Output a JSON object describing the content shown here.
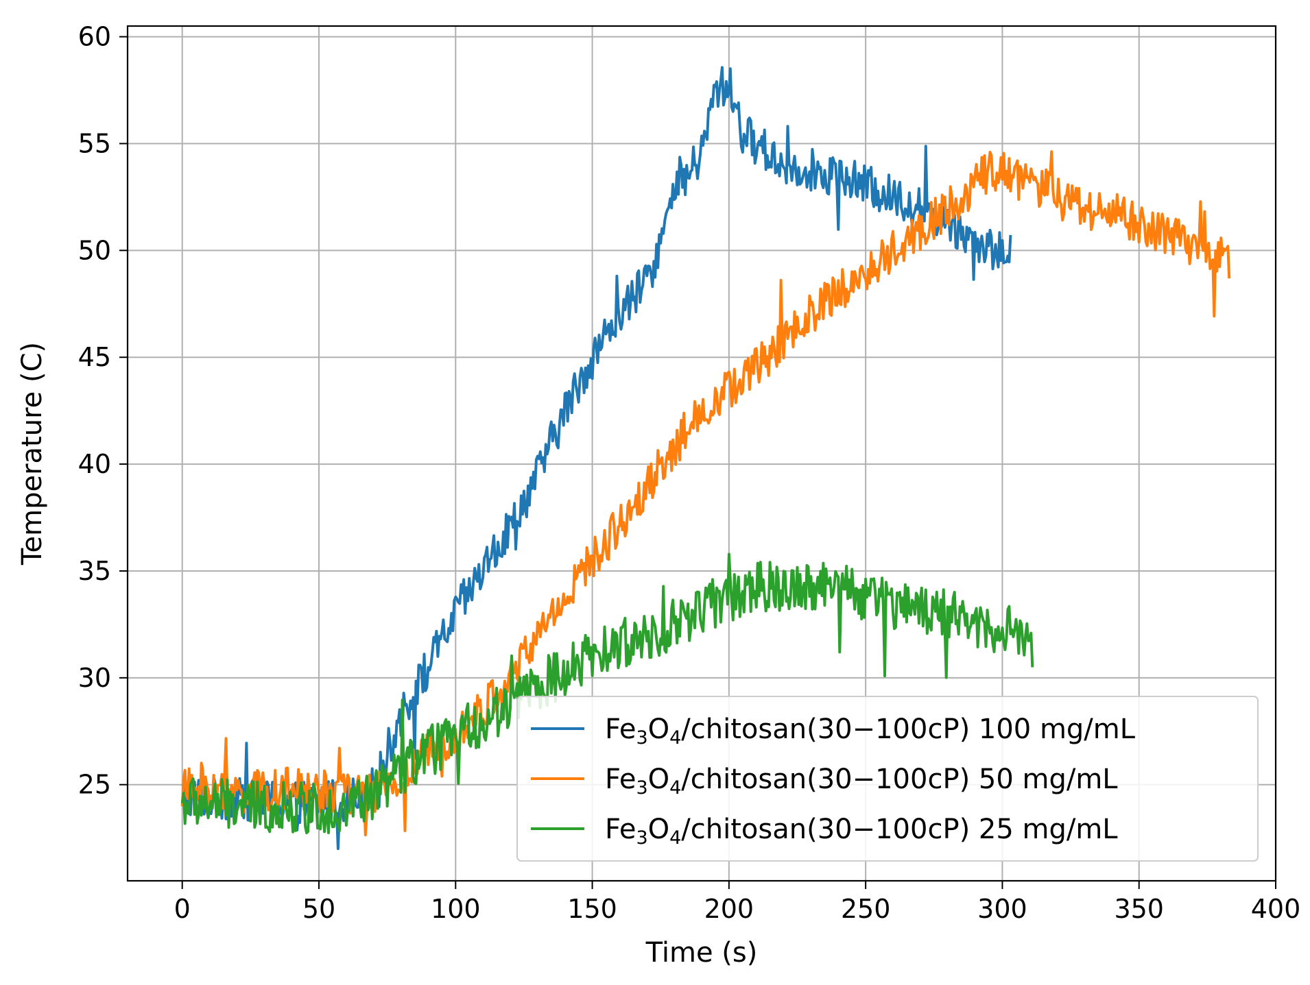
{
  "chart_data": {
    "type": "line",
    "xlabel": "Time (s)",
    "ylabel": "Temperature (C)",
    "xlim": [
      -20,
      400
    ],
    "ylim": [
      20.5,
      60.5
    ],
    "xticks": [
      0,
      50,
      100,
      150,
      200,
      250,
      300,
      350,
      400
    ],
    "yticks": [
      25,
      30,
      35,
      40,
      45,
      50,
      55,
      60
    ],
    "grid": true,
    "legend_position": "lower-right",
    "series": [
      {
        "name": "Fe3O4/chitosan(30−100cP) 100 mg/mL",
        "legend": {
          "a": "Fe",
          "s1": "3",
          "b": "O",
          "s2": "4",
          "c": "/chitosan(30−100cP) 100 mg/mL"
        },
        "color": "#1f77b4",
        "x_end": 303,
        "noise": 1.0,
        "points": [
          [
            0,
            24.5
          ],
          [
            20,
            24.3
          ],
          [
            40,
            24.2
          ],
          [
            60,
            24.3
          ],
          [
            70,
            24.8
          ],
          [
            80,
            28.2
          ],
          [
            90,
            30.5
          ],
          [
            100,
            33
          ],
          [
            110,
            35
          ],
          [
            120,
            37
          ],
          [
            130,
            39.5
          ],
          [
            140,
            42.5
          ],
          [
            150,
            45
          ],
          [
            160,
            47
          ],
          [
            170,
            48.5
          ],
          [
            180,
            52.5
          ],
          [
            190,
            54.5
          ],
          [
            195,
            57.5
          ],
          [
            200,
            57.8
          ],
          [
            205,
            55.5
          ],
          [
            210,
            55
          ],
          [
            220,
            54
          ],
          [
            230,
            53.8
          ],
          [
            240,
            53.5
          ],
          [
            250,
            53
          ],
          [
            260,
            52.5
          ],
          [
            270,
            52
          ],
          [
            280,
            51.3
          ],
          [
            290,
            50.5
          ],
          [
            300,
            49.8
          ],
          [
            303,
            49.8
          ]
        ]
      },
      {
        "name": "Fe3O4/chitosan(30−100cP) 50 mg/mL",
        "legend": {
          "a": "Fe",
          "s1": "3",
          "b": "O",
          "s2": "4",
          "c": "/chitosan(30−100cP) 50 mg/mL"
        },
        "color": "#ff7f0e",
        "x_end": 383,
        "noise": 1.0,
        "points": [
          [
            0,
            24.8
          ],
          [
            20,
            24.6
          ],
          [
            40,
            24.8
          ],
          [
            60,
            24.6
          ],
          [
            70,
            24.5
          ],
          [
            80,
            25.2
          ],
          [
            90,
            26.5
          ],
          [
            100,
            27.5
          ],
          [
            110,
            28.5
          ],
          [
            120,
            30
          ],
          [
            130,
            32
          ],
          [
            140,
            33.8
          ],
          [
            150,
            35.5
          ],
          [
            160,
            37.2
          ],
          [
            170,
            39
          ],
          [
            180,
            40.8
          ],
          [
            190,
            42.5
          ],
          [
            200,
            43.5
          ],
          [
            210,
            44.5
          ],
          [
            220,
            45.8
          ],
          [
            230,
            47
          ],
          [
            240,
            48
          ],
          [
            250,
            49
          ],
          [
            260,
            50
          ],
          [
            270,
            51
          ],
          [
            280,
            52
          ],
          [
            290,
            53
          ],
          [
            295,
            53.8
          ],
          [
            300,
            53.6
          ],
          [
            310,
            53.2
          ],
          [
            320,
            52.5
          ],
          [
            330,
            52
          ],
          [
            340,
            51.8
          ],
          [
            350,
            51.2
          ],
          [
            360,
            50.7
          ],
          [
            370,
            50.3
          ],
          [
            383,
            49.5
          ]
        ]
      },
      {
        "name": "Fe3O4/chitosan(30−100cP) 25 mg/mL",
        "legend": {
          "a": "Fe",
          "s1": "3",
          "b": "O",
          "s2": "4",
          "c": "/chitosan(30−100cP) 25 mg/mL"
        },
        "color": "#2ca02c",
        "x_end": 311,
        "noise": 1.2,
        "points": [
          [
            0,
            24.2
          ],
          [
            20,
            24.0
          ],
          [
            40,
            23.9
          ],
          [
            60,
            23.9
          ],
          [
            70,
            24.5
          ],
          [
            80,
            25.6
          ],
          [
            90,
            26.5
          ],
          [
            100,
            27.3
          ],
          [
            110,
            28
          ],
          [
            120,
            28.8
          ],
          [
            130,
            29.6
          ],
          [
            140,
            30.3
          ],
          [
            150,
            31
          ],
          [
            160,
            31.5
          ],
          [
            170,
            32
          ],
          [
            180,
            32.5
          ],
          [
            190,
            33.2
          ],
          [
            200,
            33.8
          ],
          [
            210,
            34.2
          ],
          [
            220,
            34.3
          ],
          [
            230,
            34.4
          ],
          [
            240,
            34.2
          ],
          [
            250,
            33.8
          ],
          [
            260,
            33.5
          ],
          [
            270,
            33.2
          ],
          [
            280,
            32.9
          ],
          [
            290,
            32.6
          ],
          [
            300,
            32.3
          ],
          [
            311,
            31.6
          ]
        ]
      }
    ]
  }
}
